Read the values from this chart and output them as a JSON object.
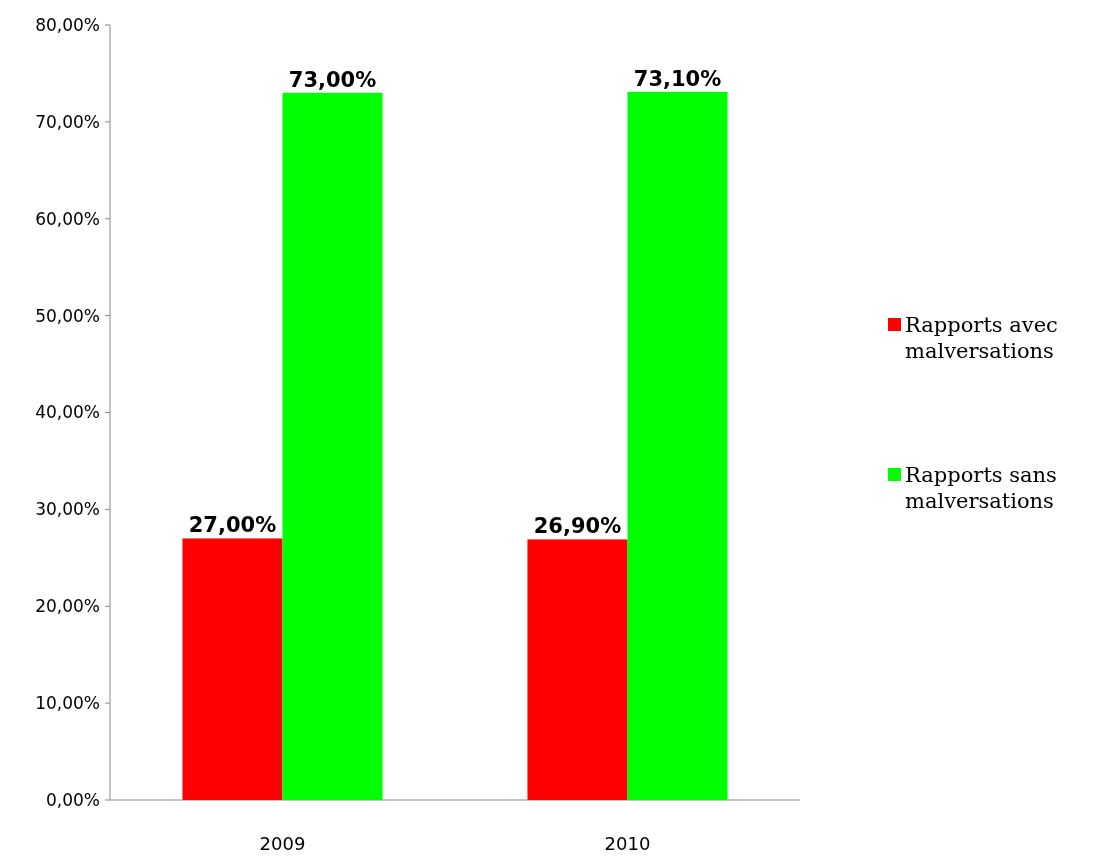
{
  "chart_data": {
    "type": "bar",
    "categories": [
      "2009",
      "2010"
    ],
    "series": [
      {
        "name": "Rapports avec malversations",
        "color": "#ff0000",
        "values": [
          27,
          26.9
        ],
        "value_labels": [
          "27,00%",
          "26,90%"
        ]
      },
      {
        "name": "Rapports sans malversations",
        "color": "#00ff00",
        "values": [
          73,
          73.1
        ],
        "value_labels": [
          "73,00%",
          "73,10%"
        ]
      }
    ],
    "ylim": [
      0,
      80
    ],
    "yticks": [
      {
        "value": 0,
        "label": "0,00%"
      },
      {
        "value": 10,
        "label": "10,00%"
      },
      {
        "value": 20,
        "label": "20,00%"
      },
      {
        "value": 30,
        "label": "30,00%"
      },
      {
        "value": 40,
        "label": "40,00%"
      },
      {
        "value": 50,
        "label": "50,00%"
      },
      {
        "value": 60,
        "label": "60,00%"
      },
      {
        "value": 70,
        "label": "70,00%"
      },
      {
        "value": 80,
        "label": "80,00%"
      }
    ],
    "grid": false,
    "legend": "right"
  }
}
